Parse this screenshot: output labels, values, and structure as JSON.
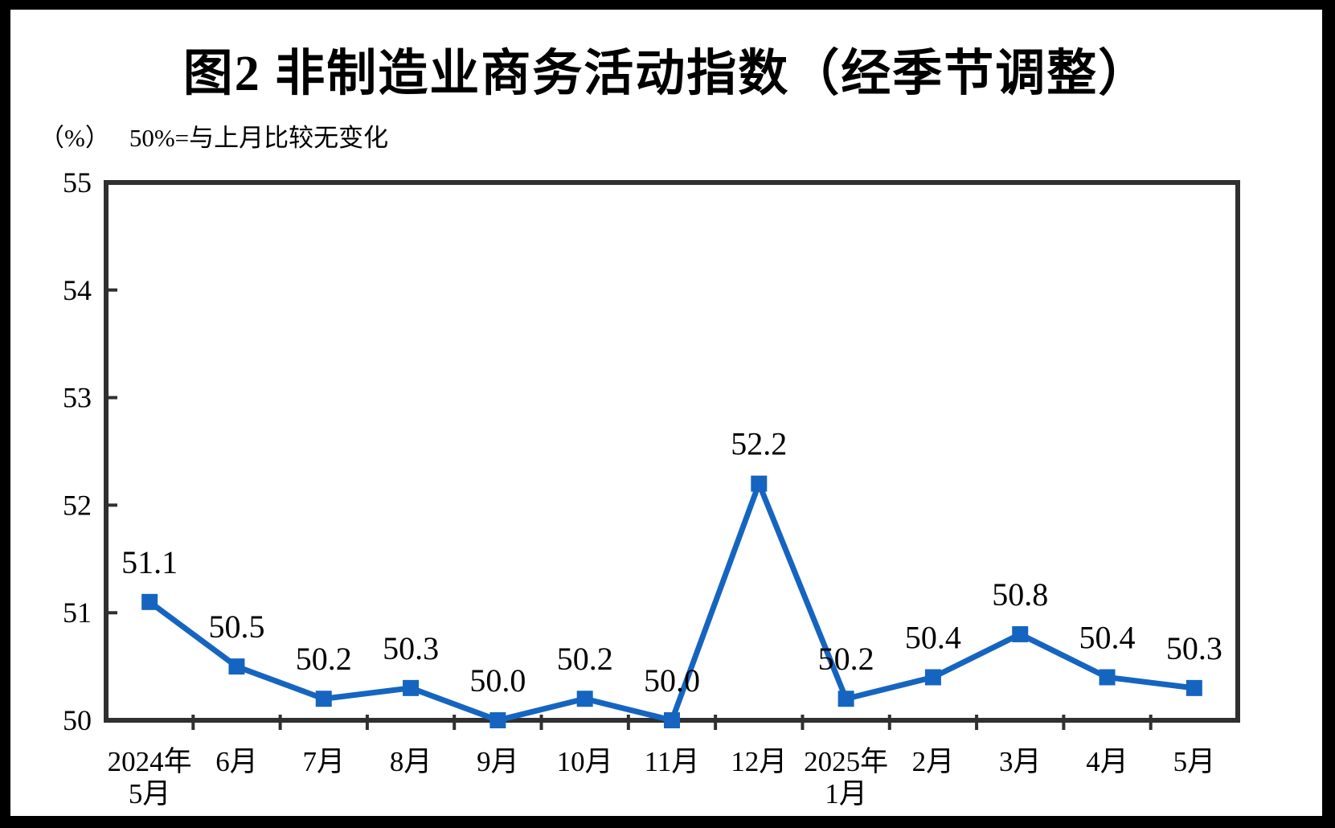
{
  "chart_data": {
    "type": "line",
    "title": "图2 非制造业商务活动指数（经季节调整）",
    "unit_label": "（%）",
    "note": "50%=与上月比较无变化",
    "categories": [
      [
        "2024年",
        "5月"
      ],
      [
        "6月"
      ],
      [
        "7月"
      ],
      [
        "8月"
      ],
      [
        "9月"
      ],
      [
        "10月"
      ],
      [
        "11月"
      ],
      [
        "12月"
      ],
      [
        "2025年",
        "1月"
      ],
      [
        "2月"
      ],
      [
        "3月"
      ],
      [
        "4月"
      ],
      [
        "5月"
      ]
    ],
    "series": [
      {
        "values": [
          51.1,
          50.5,
          50.2,
          50.3,
          50.0,
          50.2,
          50.0,
          52.2,
          50.2,
          50.4,
          50.8,
          50.4,
          50.3
        ],
        "point_labels": [
          "51.1",
          "50.5",
          "50.2",
          "50.3",
          "50.0",
          "50.2",
          "50.0",
          "52.2",
          "50.2",
          "50.4",
          "50.8",
          "50.4",
          "50.3"
        ],
        "color": "#1565C0",
        "marker": "square"
      }
    ],
    "ylim": [
      50,
      55
    ],
    "yticks": [
      50,
      51,
      52,
      53,
      54,
      55
    ],
    "grid": false,
    "legend": "none",
    "frame_color": "#303030",
    "text_color": "#000000",
    "background_color": "#ffffff",
    "border_color": "#000000"
  }
}
